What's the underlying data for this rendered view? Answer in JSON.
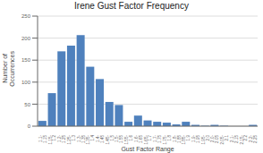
{
  "chart_data": {
    "type": "bar",
    "title": "Irene Gust Factor Frequency",
    "xlabel": "Gust Factor Range",
    "ylabel": "Number of\nOccurrences",
    "categories": [
      "1.1-\n1.15",
      "1.15-\n1.2",
      "1.2-\n1.25",
      "1.25-\n1.3",
      "1.3-\n1.35",
      "1.35-\n1.4",
      "1.4-\n1.45",
      "1.45-\n1.5",
      "1.5-\n1.55",
      "1.55-\n1.6",
      "1.6-\n1.65",
      "1.65-\n1.7",
      "1.7-\n1.75",
      "1.75-\n1.8",
      "1.8-\n1.85",
      "1.85-\n1.9",
      "1.9-\n1.95",
      "1.95-\n2.0",
      "2.0-\n2.05",
      "2.05-\n2.1",
      "2.1-\n2.15",
      "2.15-\n2.2",
      "2.2-\n2.25"
    ],
    "values": [
      12,
      75,
      170,
      183,
      207,
      135,
      107,
      55,
      48,
      10,
      24,
      13,
      10,
      8,
      4,
      10,
      3,
      1,
      3,
      1,
      0,
      0,
      3
    ],
    "color": "#4f81bd",
    "ylim": [
      0,
      250
    ],
    "yticks": [
      0,
      50,
      100,
      150,
      200,
      250
    ],
    "grid": true
  }
}
